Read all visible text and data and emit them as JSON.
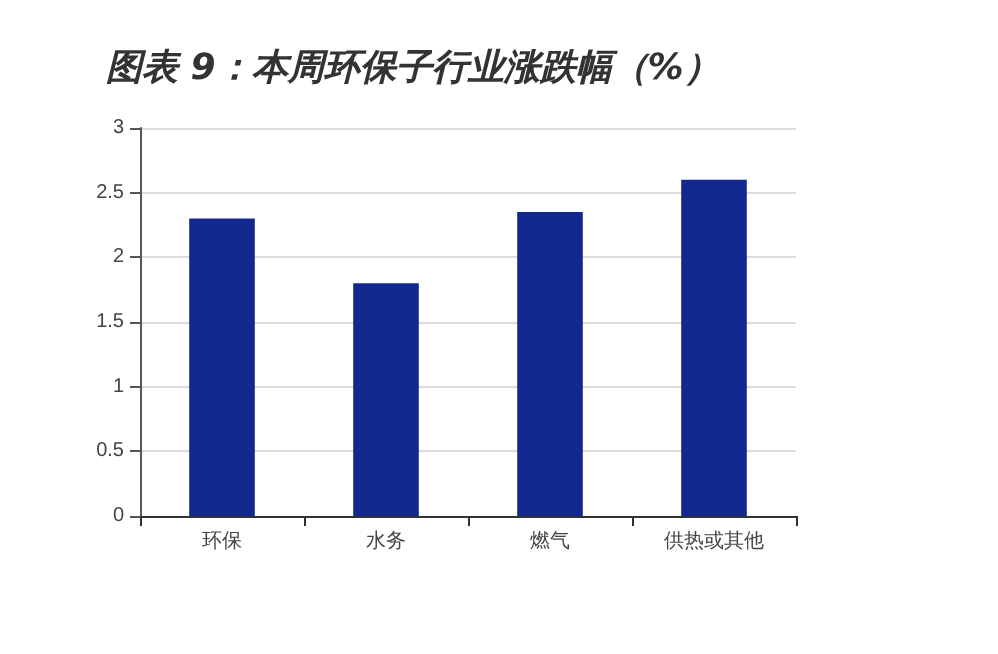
{
  "chart_data": {
    "type": "bar",
    "title": "图表 9：本周环保子行业涨跌幅（%）",
    "categories": [
      "环保",
      "水务",
      "燃气",
      "供热或其他"
    ],
    "values": [
      2.3,
      1.8,
      2.35,
      2.6
    ],
    "color": "#13288f",
    "ylim": [
      0,
      3
    ],
    "yticks": [
      0,
      0.5,
      1,
      1.5,
      2,
      2.5,
      3
    ],
    "grid": "y"
  }
}
